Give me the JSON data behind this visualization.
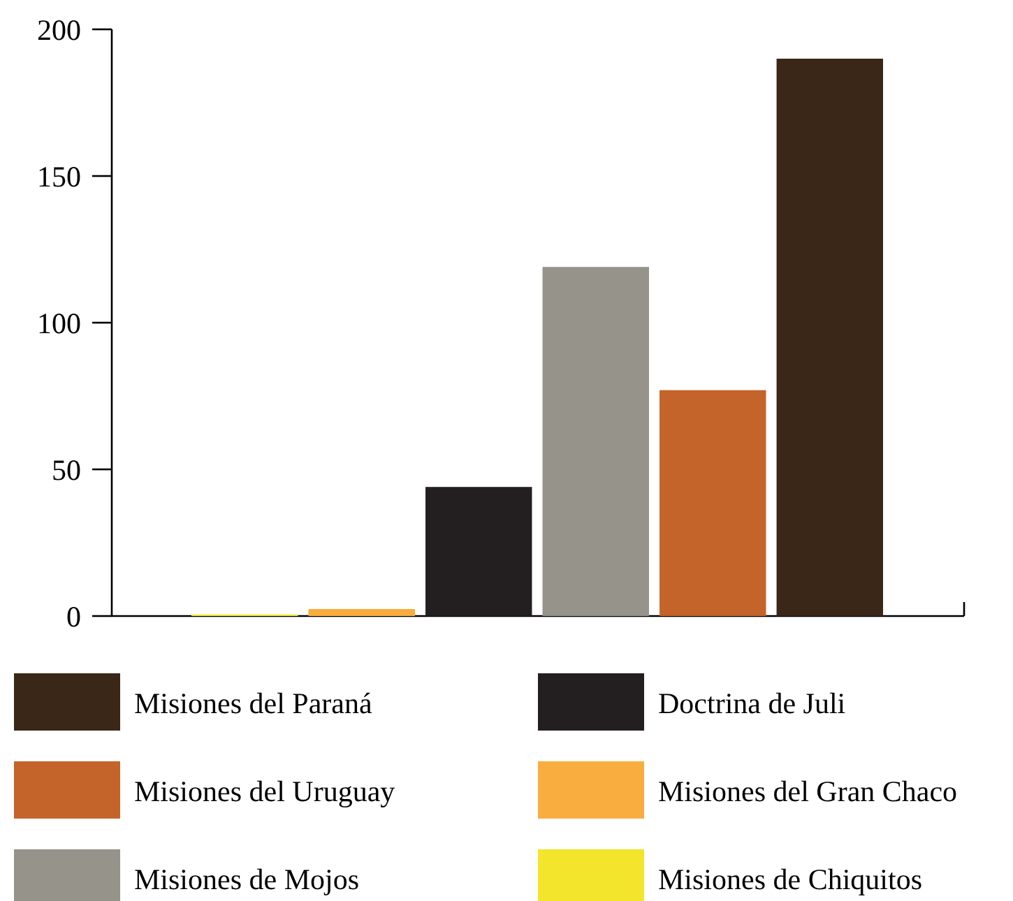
{
  "chart_data": {
    "type": "bar",
    "categories": [
      null,
      null,
      null,
      null,
      null,
      null
    ],
    "series": [
      {
        "name": "Misiones del Paraná",
        "color": "#3a2718",
        "values": [
          null,
          null,
          null,
          null,
          null,
          190
        ]
      },
      {
        "name": "Doctrina de Juli",
        "color": "#231f20",
        "values": [
          null,
          null,
          44,
          null,
          null,
          null
        ]
      },
      {
        "name": "Misiones del Uruguay",
        "color": "#c4642a",
        "values": [
          null,
          null,
          null,
          null,
          77,
          null
        ]
      },
      {
        "name": "Misiones del Gran Chaco",
        "color": "#f9ad3f",
        "values": [
          null,
          2.4,
          null,
          null,
          null,
          null
        ]
      },
      {
        "name": "Misiones de Mojos",
        "color": "#96938a",
        "values": [
          null,
          null,
          null,
          119,
          null,
          null
        ]
      },
      {
        "name": "Misiones de Chiquitos",
        "color": "#f2e52b",
        "values": [
          0.5,
          null,
          null,
          null,
          null,
          null
        ]
      }
    ],
    "ylim": [
      0,
      200
    ],
    "yticks": [
      0,
      50,
      100,
      150,
      200
    ],
    "grid": false,
    "legend": "bottom"
  }
}
